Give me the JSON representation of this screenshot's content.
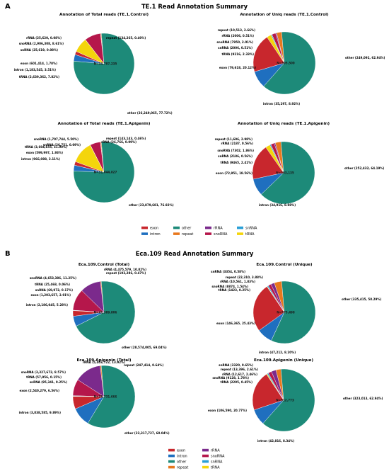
{
  "figure": {
    "panels": [
      {
        "letter": "A",
        "title": "TE.1 Read Annotation Summary"
      },
      {
        "letter": "B",
        "title": "Eca.109 Read Annotation Summary"
      }
    ]
  },
  "colors": {
    "exon": "#c8272d",
    "intron": "#1f6fbf",
    "other": "#1d8a79",
    "repeat": "#e8781e",
    "rRNA": "#7b2a8c",
    "snoRNA": "#b5174b",
    "snRNA": "#2a9fd6",
    "tRNA": "#f4d50c"
  },
  "legends": [
    {
      "items": [
        "exon",
        "intron",
        "other",
        "repeat",
        "rRNA",
        "snoRNA",
        "snRNA",
        "tRNA"
      ]
    },
    {
      "items": [
        "exon",
        "intron",
        "other",
        "repeat",
        "rRNA",
        "snoRNA",
        "snRNA",
        "tRNA"
      ]
    }
  ],
  "chart_data": [
    {
      "type": "pie",
      "title": "Annotation of Total reads (TE.1.Control)",
      "center_label": "N=33,787,235",
      "categories": [
        "exon",
        "intron",
        "tRNA",
        "snoRNA",
        "snRNA",
        "rRNA",
        "repeat",
        "other"
      ],
      "values": [
        601414,
        1183545,
        2639362,
        2906308,
        25619,
        25620,
        134265,
        26249065
      ],
      "labels": [
        "exon (601,414, 1.78%)",
        "intron (1,183,545, 3.51%)",
        "tRNA (2,639,362, 7.82%)",
        "snoRNA (2,906,308, 8.61%)",
        "snRNA (25,619, 0.08%)",
        "rRNA (25,620, 0.08%)",
        "repeat (134,265, 0.40%)",
        "other (26,249,065, 77.72%)"
      ]
    },
    {
      "type": "pie",
      "title": "Annotation of Uniq reads (TE.1.Control)",
      "center_label": "N=395,509",
      "categories": [
        "exon",
        "intron",
        "tRNA",
        "snoRNA",
        "snRNA",
        "rRNA",
        "repeat",
        "other"
      ],
      "values": [
        79618,
        35297,
        9216,
        7950,
        2006,
        2006,
        10513,
        249092
      ],
      "labels": [
        "exon (79,618, 20.12%)",
        "intron (35,297, 8.92%)",
        "tRNA (9216, 2.33%)",
        "snoRNA (7950, 2.01%)",
        "snRNA (2006, 0.51%)",
        "rRNA (2006, 0.51%)",
        "repeat (10,513, 2.66%)",
        "other (249,092, 62.94%)"
      ]
    },
    {
      "type": "pie",
      "title": "Annotation of Total reads (TE.1.Apigenin)",
      "center_label": "N=31,044,827",
      "categories": [
        "exon",
        "intron",
        "tRNA",
        "snoRNA",
        "snRNA",
        "rRNA",
        "repeat",
        "other"
      ],
      "values": [
        599997,
        966088,
        3694655,
        1707744,
        26751,
        26766,
        143143,
        23879681
      ],
      "labels": [
        "exon (599,997, 1.93%)",
        "intron (966,088, 3.11%)",
        "tRNA (3,694,655, 11.90%)",
        "snoRNA (1,707,744, 5.50%)",
        "snRNA (26,751, 0.09%)",
        "rRNA (26,766, 0.09%)",
        "repeat (143,143, 0.46%)",
        "other (23,879,681, 76.92%)"
      ]
    },
    {
      "type": "pie",
      "title": "Annotation of Uniq reads (TE.1.Apigenin)",
      "center_label": "N=393,135",
      "categories": [
        "exon",
        "intron",
        "tRNA",
        "snoRNA",
        "snRNA",
        "rRNA",
        "repeat",
        "other"
      ],
      "values": [
        72951,
        34916,
        9465,
        7302,
        2186,
        2187,
        11696,
        252432
      ],
      "labels": [
        "exon (72,951, 18.56%)",
        "intron (34,916, 8.88%)",
        "tRNA (9465, 2.41%)",
        "snoRNA (7302, 1.86%)",
        "snRNA (2186, 0.56%)",
        "rRNA (2187, 0.56%)",
        "repeat (11,696, 2.98%)",
        "other (252,432, 64.19%)"
      ]
    },
    {
      "type": "pie",
      "title": "Eca.109.Control (Total)",
      "center_label": "N=41,389,806",
      "categories": [
        "exon",
        "intron",
        "tRNA",
        "snoRNA",
        "snRNA",
        "rRNA",
        "repeat",
        "other"
      ],
      "values": [
        1203657,
        2186045,
        25468,
        4653386,
        69972,
        4475579,
        193286,
        28574005
      ],
      "labels": [
        "exon (1,203,657, 2.91%)",
        "intron (2,186,045, 5.28%)",
        "tRNA (25,468, 0.06%)",
        "snoRNA (4,653,386, 11.25%)",
        "snRNA (69,972, 0.17%)",
        "rRNA (4,475,579, 10.82%)",
        "repeat (193,286, 0.47%)",
        "other (28,574,005, 69.04%)"
      ]
    },
    {
      "type": "pie",
      "title": "Eca.109.Control (Unique)",
      "center_label": "N=575,498",
      "categories": [
        "exon",
        "intron",
        "tRNA",
        "snoRNA",
        "snRNA",
        "rRNA",
        "repeat",
        "other"
      ],
      "values": [
        146365,
        47212,
        1423,
        8874,
        3354,
        10561,
        22310,
        335415
      ],
      "labels": [
        "exon (146,365, 25.43%)",
        "intron (47,212, 8.20%)",
        "tRNA (1423, 0.25%)",
        "snoRNA (8874, 1.54%)",
        "snRNA (3354, 0.58%)",
        "rRNA (10,561, 1.83%)",
        "repeat (22,310, 3.88%)",
        "other (335,415, 58.29%)"
      ]
    },
    {
      "type": "pie",
      "title": "Eca.109.Apigenin (Total)",
      "center_label": "N=38,731,666",
      "categories": [
        "exon",
        "intron",
        "tRNA",
        "snoRNA",
        "snRNA",
        "rRNA",
        "repeat",
        "other"
      ],
      "values": [
        2540279,
        3838585,
        57956,
        3327672,
        95341,
        5403722,
        247414,
        23317727
      ],
      "labels": [
        "exon (2,540,279, 6.56%)",
        "intron (3,838,585, 9.89%)",
        "tRNA (57,956, 0.15%)",
        "snoRNA (3,327,672, 8.57%)",
        "snRNA (95,341, 0.25%)",
        "rRNA (5,403,722, 13.92%)",
        "repeat (247,414, 0.64%)",
        "other (23,317,727, 60.04%)"
      ]
    },
    {
      "type": "pie",
      "title": "Eca.109.Apigenin (Unique)",
      "center_label": "N=512,773",
      "categories": [
        "exon",
        "intron",
        "tRNA",
        "snoRNA",
        "snRNA",
        "rRNA",
        "repeat",
        "other"
      ],
      "values": [
        106590,
        42816,
        2295,
        9128,
        3320,
        12617,
        13396,
        323013
      ],
      "labels": [
        "exon (106,590, 20.77%)",
        "intron (42,816, 8.34%)",
        "tRNA (2295, 0.45%)",
        "snoRNA (9128, 1.78%)",
        "snRNA (3320, 0.65%)",
        "rRNA (12,617, 2.46%)",
        "repeat (13,396, 2.61%)",
        "other (323,013, 62.94%)"
      ]
    }
  ]
}
